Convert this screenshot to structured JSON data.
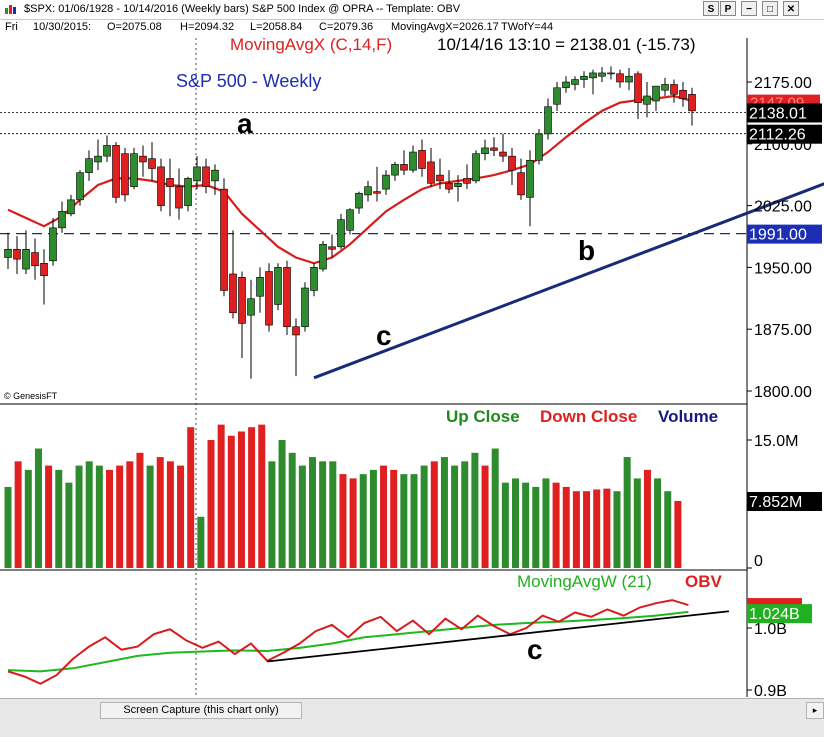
{
  "window": {
    "title": "$SPX: 01/06/1928 - 10/14/2016   (Weekly bars)   S&P 500 Index @ OPRA   --   Template: OBV",
    "buttons": [
      "S",
      "P",
      "−",
      "□",
      "✕"
    ]
  },
  "info_row": {
    "day": "Fri",
    "date": "10/30/2015:",
    "open": "O=2075.08",
    "high": "H=2094.32",
    "low": "L=2058.84",
    "close": "C=2079.36",
    "ma": "MovingAvgX=2026.17",
    "twofy": "TWofY=44"
  },
  "chart_data": [
    {
      "type": "candlestick",
      "title": "S&P 500 - Weekly",
      "indicator_label": "MovingAvgX (C,14,F)",
      "last_bar_text": "10/14/16 13:10 = 2138.01 (-15.73)",
      "yticks": [
        1800,
        1875,
        1950,
        2025,
        2100,
        2175
      ],
      "ytick_labels": [
        "1800.00",
        "1875.00",
        "1950.00",
        "2025.00",
        "2100.00",
        "2175.00"
      ],
      "ylim": [
        1800,
        2210
      ],
      "price_tags": [
        "2138.01",
        "2112.26",
        "1991.00"
      ],
      "partial_tag": "2147.09",
      "annotations": [
        "a",
        "b",
        "c"
      ],
      "credit": "© GenesisFT",
      "horizontal_lines": [
        1991,
        2112.26,
        2138.01
      ],
      "trendline": [
        [
          35,
          1816
        ],
        [
          107,
          2115
        ]
      ],
      "candles": [
        [
          1,
          1962,
          1992,
          1972,
          1948
        ],
        [
          2,
          1972,
          1988,
          1960,
          1942
        ],
        [
          3,
          1948,
          1995,
          1972,
          1942
        ],
        [
          4,
          1968,
          1985,
          1952,
          1935
        ],
        [
          5,
          1955,
          1972,
          1940,
          1905
        ],
        [
          6,
          1958,
          2010,
          1998,
          1952
        ],
        [
          7,
          1998,
          2030,
          2018,
          1992
        ],
        [
          8,
          2015,
          2038,
          2032,
          2012
        ],
        [
          9,
          2032,
          2068,
          2065,
          2025
        ],
        [
          10,
          2065,
          2092,
          2082,
          2055
        ],
        [
          11,
          2078,
          2105,
          2085,
          2068
        ],
        [
          12,
          2085,
          2110,
          2098,
          2078
        ],
        [
          13,
          2098,
          2102,
          2035,
          2028
        ],
        [
          14,
          2088,
          2095,
          2038,
          2030
        ],
        [
          15,
          2048,
          2095,
          2088,
          2045
        ],
        [
          16,
          2085,
          2098,
          2078,
          2060
        ],
        [
          17,
          2082,
          2102,
          2070,
          2055
        ],
        [
          18,
          2072,
          2082,
          2025,
          2018
        ],
        [
          19,
          2058,
          2082,
          2048,
          2012
        ],
        [
          20,
          2048,
          2070,
          2022,
          2008
        ],
        [
          21,
          2025,
          2060,
          2058,
          2018
        ],
        [
          22,
          2055,
          2085,
          2072,
          2045
        ],
        [
          23,
          2072,
          2082,
          2048,
          2040
        ],
        [
          24,
          2055,
          2075,
          2068,
          2038
        ],
        [
          25,
          2045,
          2058,
          1922,
          1915
        ],
        [
          26,
          1942,
          1995,
          1895,
          1888
        ],
        [
          27,
          1938,
          1945,
          1882,
          1840
        ],
        [
          28,
          1892,
          1935,
          1912,
          1815
        ],
        [
          29,
          1915,
          1950,
          1938,
          1895
        ],
        [
          30,
          1945,
          1955,
          1880,
          1872
        ],
        [
          31,
          1905,
          1955,
          1950,
          1898
        ],
        [
          32,
          1950,
          1958,
          1878,
          1868
        ],
        [
          33,
          1878,
          1888,
          1868,
          1818
        ],
        [
          34,
          1878,
          1932,
          1925,
          1872
        ],
        [
          35,
          1922,
          1955,
          1950,
          1915
        ],
        [
          36,
          1948,
          1982,
          1978,
          1945
        ],
        [
          37,
          1975,
          1990,
          1972,
          1962
        ],
        [
          38,
          1975,
          2015,
          2008,
          1972
        ],
        [
          39,
          1995,
          2022,
          2020,
          1990
        ],
        [
          40,
          2022,
          2042,
          2040,
          2015
        ],
        [
          41,
          2038,
          2055,
          2048,
          2030
        ],
        [
          42,
          2042,
          2072,
          2040,
          2030
        ],
        [
          43,
          2045,
          2068,
          2062,
          2038
        ],
        [
          44,
          2062,
          2078,
          2075,
          2055
        ],
        [
          45,
          2075,
          2092,
          2068,
          2062
        ],
        [
          46,
          2068,
          2098,
          2090,
          2065
        ],
        [
          47,
          2092,
          2105,
          2070,
          2060
        ],
        [
          48,
          2078,
          2095,
          2052,
          2048
        ],
        [
          49,
          2062,
          2082,
          2055,
          2045
        ],
        [
          50,
          2052,
          2068,
          2045,
          2040
        ],
        [
          51,
          2048,
          2062,
          2052,
          2030
        ],
        [
          52,
          2058,
          2075,
          2052,
          2045
        ],
        [
          53,
          2055,
          2092,
          2088,
          2052
        ],
        [
          54,
          2088,
          2105,
          2095,
          2080
        ],
        [
          55,
          2095,
          2108,
          2092,
          2085
        ],
        [
          56,
          2090,
          2112,
          2085,
          2078
        ],
        [
          57,
          2085,
          2095,
          2068,
          2050
        ],
        [
          58,
          2065,
          2082,
          2038,
          2032
        ],
        [
          59,
          2035,
          2092,
          2080,
          2000
        ],
        [
          60,
          2080,
          2118,
          2112,
          2075
        ],
        [
          61,
          2112,
          2155,
          2145,
          2105
        ],
        [
          62,
          2148,
          2175,
          2168,
          2140
        ],
        [
          63,
          2168,
          2182,
          2175,
          2162
        ],
        [
          64,
          2172,
          2182,
          2178,
          2165
        ],
        [
          65,
          2178,
          2188,
          2182,
          2168
        ],
        [
          66,
          2180,
          2190,
          2186,
          2160
        ],
        [
          67,
          2182,
          2193,
          2186,
          2175
        ],
        [
          68,
          2185,
          2194,
          2186,
          2178
        ],
        [
          69,
          2185,
          2190,
          2175,
          2168
        ],
        [
          70,
          2175,
          2192,
          2182,
          2165
        ],
        [
          71,
          2185,
          2188,
          2150,
          2130
        ],
        [
          72,
          2148,
          2175,
          2158,
          2132
        ],
        [
          73,
          2152,
          2170,
          2170,
          2140
        ],
        [
          74,
          2165,
          2180,
          2172,
          2158
        ],
        [
          75,
          2172,
          2178,
          2160,
          2150
        ],
        [
          76,
          2165,
          2175,
          2155,
          2145
        ],
        [
          77,
          2160,
          2168,
          2140,
          2122
        ]
      ],
      "moving_average": [
        [
          1,
          2020
        ],
        [
          3,
          2010
        ],
        [
          5,
          2000
        ],
        [
          7,
          2012
        ],
        [
          9,
          2032
        ],
        [
          11,
          2050
        ],
        [
          13,
          2058
        ],
        [
          15,
          2058
        ],
        [
          17,
          2055
        ],
        [
          19,
          2050
        ],
        [
          21,
          2048
        ],
        [
          23,
          2050
        ],
        [
          25,
          2042
        ],
        [
          27,
          2015
        ],
        [
          29,
          1995
        ],
        [
          31,
          1975
        ],
        [
          33,
          1962
        ],
        [
          35,
          1955
        ],
        [
          37,
          1962
        ],
        [
          39,
          1978
        ],
        [
          41,
          1998
        ],
        [
          43,
          2018
        ],
        [
          45,
          2032
        ],
        [
          47,
          2045
        ],
        [
          49,
          2052
        ],
        [
          51,
          2055
        ],
        [
          53,
          2058
        ],
        [
          55,
          2062
        ],
        [
          57,
          2068
        ],
        [
          59,
          2075
        ],
        [
          61,
          2090
        ],
        [
          63,
          2108
        ],
        [
          65,
          2125
        ],
        [
          67,
          2140
        ],
        [
          69,
          2150
        ],
        [
          71,
          2153
        ],
        [
          73,
          2155
        ],
        [
          75,
          2158
        ],
        [
          77,
          2152
        ]
      ]
    },
    {
      "type": "bar",
      "legend": [
        "Up Close",
        "Down Close",
        "Volume"
      ],
      "yticks": [
        0,
        15
      ],
      "ytick_labels": [
        "0",
        "15.0M"
      ],
      "ylim": [
        0,
        19
      ],
      "last_value_tag": "7.852M",
      "volumes": [
        [
          1,
          9.5,
          "up"
        ],
        [
          2,
          12.5,
          "down"
        ],
        [
          3,
          11.5,
          "up"
        ],
        [
          4,
          14.0,
          "up"
        ],
        [
          5,
          12.0,
          "down"
        ],
        [
          6,
          11.5,
          "up"
        ],
        [
          7,
          10.0,
          "up"
        ],
        [
          8,
          12.0,
          "up"
        ],
        [
          9,
          12.5,
          "up"
        ],
        [
          10,
          12.0,
          "up"
        ],
        [
          11,
          11.5,
          "down"
        ],
        [
          12,
          12.0,
          "down"
        ],
        [
          13,
          12.5,
          "down"
        ],
        [
          14,
          13.5,
          "down"
        ],
        [
          15,
          12.0,
          "up"
        ],
        [
          16,
          13.0,
          "down"
        ],
        [
          17,
          12.5,
          "down"
        ],
        [
          18,
          12.0,
          "down"
        ],
        [
          19,
          16.5,
          "down"
        ],
        [
          20,
          6.0,
          "up"
        ],
        [
          21,
          15.0,
          "down"
        ],
        [
          22,
          16.8,
          "down"
        ],
        [
          23,
          15.5,
          "down"
        ],
        [
          24,
          16.0,
          "down"
        ],
        [
          25,
          16.5,
          "down"
        ],
        [
          26,
          16.8,
          "down"
        ],
        [
          27,
          12.5,
          "up"
        ],
        [
          28,
          15.0,
          "up"
        ],
        [
          29,
          13.5,
          "up"
        ],
        [
          30,
          12.0,
          "up"
        ],
        [
          31,
          13.0,
          "up"
        ],
        [
          32,
          12.5,
          "up"
        ],
        [
          33,
          12.5,
          "up"
        ],
        [
          34,
          11.0,
          "down"
        ],
        [
          35,
          10.5,
          "down"
        ],
        [
          36,
          11.0,
          "up"
        ],
        [
          37,
          11.5,
          "up"
        ],
        [
          38,
          12.0,
          "down"
        ],
        [
          39,
          11.5,
          "down"
        ],
        [
          40,
          11.0,
          "up"
        ],
        [
          41,
          11.0,
          "up"
        ],
        [
          42,
          12.0,
          "up"
        ],
        [
          43,
          12.5,
          "down"
        ],
        [
          44,
          13.0,
          "up"
        ],
        [
          45,
          12.0,
          "up"
        ],
        [
          46,
          12.5,
          "up"
        ],
        [
          47,
          13.5,
          "up"
        ],
        [
          48,
          12.0,
          "down"
        ],
        [
          49,
          14.0,
          "up"
        ],
        [
          50,
          10.0,
          "up"
        ],
        [
          51,
          10.5,
          "up"
        ],
        [
          52,
          10.0,
          "up"
        ],
        [
          53,
          9.5,
          "up"
        ],
        [
          54,
          10.5,
          "up"
        ],
        [
          55,
          10.0,
          "down"
        ],
        [
          56,
          9.5,
          "down"
        ],
        [
          57,
          9.0,
          "down"
        ],
        [
          58,
          9.0,
          "down"
        ],
        [
          59,
          9.2,
          "down"
        ],
        [
          60,
          9.3,
          "down"
        ],
        [
          61,
          9.0,
          "up"
        ],
        [
          62,
          13.0,
          "up"
        ],
        [
          63,
          10.5,
          "up"
        ],
        [
          64,
          11.5,
          "down"
        ],
        [
          65,
          10.5,
          "up"
        ],
        [
          66,
          9.0,
          "up"
        ],
        [
          67,
          7.852,
          "down"
        ]
      ]
    },
    {
      "type": "line",
      "legend": [
        "MovingAvgW (21)",
        "OBV"
      ],
      "yticks": [
        0.9,
        1.0
      ],
      "ytick_labels": [
        "0.9B",
        "1.0B"
      ],
      "ylim": [
        0.88,
        1.055
      ],
      "last_value_tag": "1.024B",
      "annotation": "c",
      "trendline": [
        [
          33,
          0.946
        ],
        [
          90,
          1.027
        ]
      ],
      "obv": [
        [
          1,
          0.93
        ],
        [
          3,
          0.922
        ],
        [
          5,
          0.91
        ],
        [
          7,
          0.924
        ],
        [
          9,
          0.95
        ],
        [
          11,
          0.97
        ],
        [
          13,
          0.985
        ],
        [
          15,
          0.965
        ],
        [
          17,
          0.97
        ],
        [
          19,
          0.99
        ],
        [
          21,
          0.998
        ],
        [
          23,
          0.98
        ],
        [
          25,
          0.968
        ],
        [
          27,
          0.978
        ],
        [
          29,
          0.958
        ],
        [
          31,
          0.975
        ],
        [
          33,
          0.947
        ],
        [
          35,
          0.96
        ],
        [
          37,
          0.975
        ],
        [
          39,
          0.995
        ],
        [
          41,
          1.005
        ],
        [
          43,
          0.985
        ],
        [
          45,
          1.008
        ],
        [
          47,
          1.018
        ],
        [
          49,
          0.995
        ],
        [
          51,
          1.012
        ],
        [
          53,
          0.99
        ],
        [
          55,
          1.015
        ],
        [
          57,
          0.998
        ],
        [
          59,
          1.02
        ],
        [
          61,
          1.003
        ],
        [
          63,
          0.99
        ],
        [
          65,
          1.0
        ],
        [
          67,
          1.02
        ],
        [
          69,
          1.01
        ],
        [
          71,
          1.025
        ],
        [
          73,
          1.018
        ],
        [
          75,
          1.03
        ],
        [
          77,
          1.02
        ],
        [
          79,
          1.033
        ],
        [
          81,
          1.04
        ],
        [
          83,
          1.045
        ],
        [
          85,
          1.037
        ]
      ],
      "moving_average": [
        [
          1,
          0.932
        ],
        [
          5,
          0.93
        ],
        [
          9,
          0.935
        ],
        [
          13,
          0.945
        ],
        [
          17,
          0.955
        ],
        [
          21,
          0.96
        ],
        [
          25,
          0.962
        ],
        [
          29,
          0.964
        ],
        [
          33,
          0.963
        ],
        [
          37,
          0.968
        ],
        [
          41,
          0.975
        ],
        [
          45,
          0.985
        ],
        [
          49,
          0.99
        ],
        [
          53,
          0.995
        ],
        [
          57,
          1.0
        ],
        [
          61,
          1.005
        ],
        [
          65,
          1.008
        ],
        [
          69,
          1.01
        ],
        [
          73,
          1.013
        ],
        [
          77,
          1.016
        ],
        [
          81,
          1.02
        ],
        [
          85,
          1.026
        ]
      ]
    }
  ],
  "colors": {
    "up": "#2e8b2e",
    "down": "#e02020",
    "moving_average": "#d81c1c",
    "obv_ma": "#1fb81f",
    "trendline": "#1a2a7a",
    "title": "#1f2db0",
    "grid": "#000000",
    "price_tag_bg": "#000000",
    "blue_tag_bg": "#1c2fb4",
    "green_tag_bg": "#20b020",
    "red_tag_bg": "#e02020"
  },
  "statusbar": {
    "capture_label": "Screen Capture (this chart only)"
  }
}
